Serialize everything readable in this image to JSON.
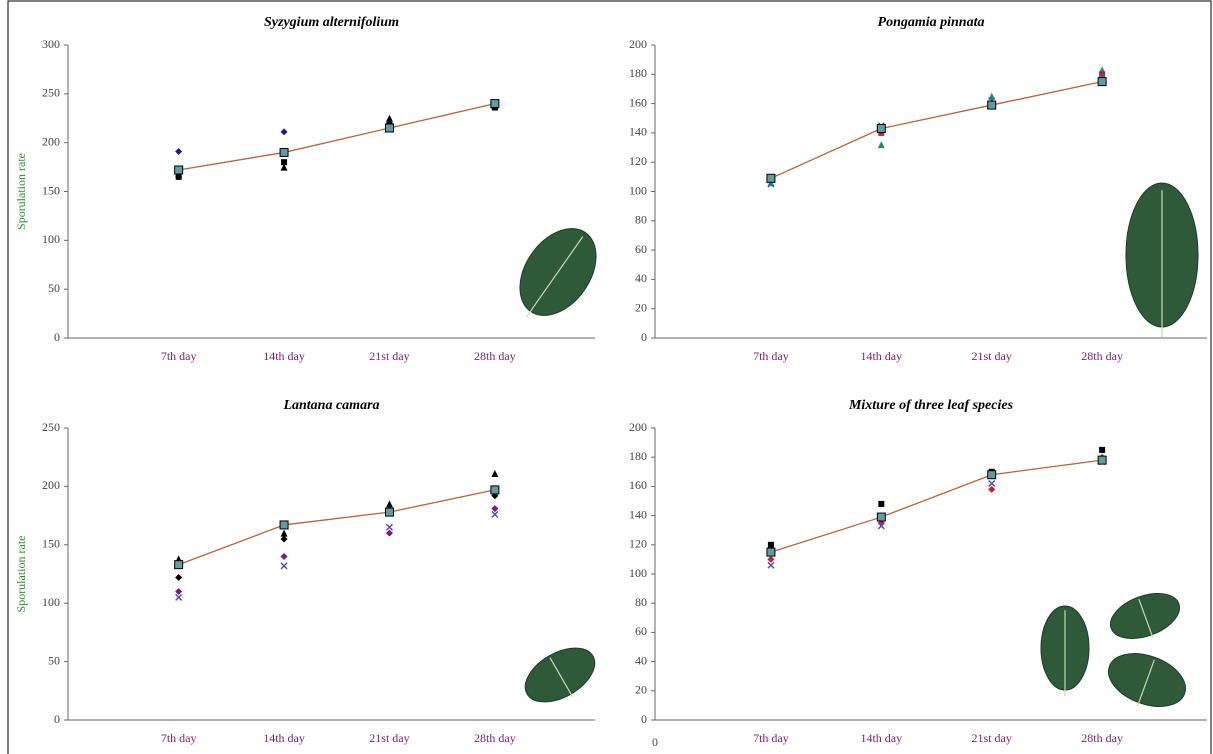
{
  "chart_data": [
    {
      "type": "line",
      "title": "Syzygium alternifolium",
      "ylabel": "Sporulation rate",
      "categories": [
        "7th day",
        "14th day",
        "21st day",
        "28th day"
      ],
      "ylim": [
        0,
        300
      ],
      "yticks": [
        0,
        50,
        100,
        150,
        200,
        250,
        300
      ],
      "series": [
        {
          "style": "line",
          "color": "#b5623c",
          "values": [
            172,
            190,
            215,
            240
          ]
        },
        {
          "style": "points",
          "marker": "diamond",
          "color": "#1f1f7a",
          "values": [
            191,
            211,
            220,
            237
          ]
        },
        {
          "style": "points",
          "marker": "triangle",
          "color": "#000000",
          "values": [
            168,
            175,
            225,
            238
          ]
        },
        {
          "style": "points",
          "marker": "square",
          "color": "#000000",
          "values": [
            165,
            180,
            218,
            236
          ]
        }
      ]
    },
    {
      "type": "line",
      "title": "Pongamia pinnata",
      "categories": [
        "7th day",
        "14th day",
        "21st day",
        "28th day"
      ],
      "ylim": [
        0,
        200
      ],
      "yticks": [
        0,
        20,
        40,
        60,
        80,
        100,
        120,
        140,
        160,
        180,
        200
      ],
      "series": [
        {
          "style": "line",
          "color": "#b5623c",
          "values": [
            109,
            143,
            159,
            175
          ]
        },
        {
          "style": "points",
          "marker": "triangle",
          "color": "#2e8b57",
          "values": [
            106,
            132,
            165,
            183
          ]
        },
        {
          "style": "points",
          "marker": "square",
          "color": "#c0203a",
          "values": [
            108,
            140,
            160,
            180
          ]
        },
        {
          "style": "points",
          "marker": "x",
          "color": "#1f6fbf",
          "values": [
            105,
            145,
            162,
            178
          ]
        }
      ]
    },
    {
      "type": "line",
      "title": "Lantana camara",
      "ylabel": "Sporulation rate",
      "categories": [
        "7th day",
        "14th day",
        "21st day",
        "28th day"
      ],
      "ylim": [
        0,
        250
      ],
      "yticks": [
        0,
        50,
        100,
        150,
        200,
        250
      ],
      "series": [
        {
          "style": "line",
          "color": "#b5623c",
          "values": [
            133,
            167,
            178,
            197
          ]
        },
        {
          "style": "points",
          "marker": "triangle",
          "color": "#000000",
          "values": [
            138,
            160,
            185,
            211
          ]
        },
        {
          "style": "points",
          "marker": "diamond",
          "color": "#7a1f6e",
          "values": [
            110,
            140,
            160,
            181
          ]
        },
        {
          "style": "points",
          "marker": "x",
          "color": "#5a3fbf",
          "values": [
            105,
            132,
            165,
            176
          ]
        },
        {
          "style": "points",
          "marker": "diamond",
          "color": "#000000",
          "values": [
            122,
            155,
            180,
            192
          ]
        }
      ]
    },
    {
      "type": "line",
      "title": "Mixture of three leaf species",
      "annotations": [
        "0"
      ],
      "categories": [
        "7th day",
        "14th day",
        "21st day",
        "28th day"
      ],
      "ylim": [
        0,
        200
      ],
      "yticks": [
        0,
        20,
        40,
        60,
        80,
        100,
        120,
        140,
        160,
        180,
        200
      ],
      "series": [
        {
          "style": "line",
          "color": "#b5623c",
          "values": [
            115,
            139,
            168,
            178
          ]
        },
        {
          "style": "points",
          "marker": "square",
          "color": "#000000",
          "values": [
            120,
            148,
            170,
            185
          ]
        },
        {
          "style": "points",
          "marker": "diamond",
          "color": "#c0203a",
          "values": [
            110,
            135,
            158,
            180
          ]
        },
        {
          "style": "points",
          "marker": "x",
          "color": "#5a3fbf",
          "values": [
            106,
            133,
            162,
            177
          ]
        }
      ]
    }
  ]
}
